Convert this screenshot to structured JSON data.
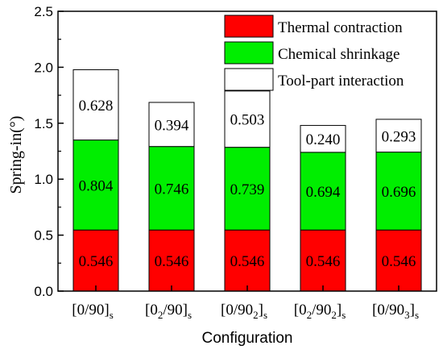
{
  "chart_data": {
    "type": "bar",
    "stacked": true,
    "categories": [
      {
        "base": "[0/90]",
        "sub": "s",
        "inner": ""
      },
      {
        "base": "[0",
        "inner": "2",
        "rest": "/90]",
        "sub": "s"
      },
      {
        "base": "[0/90",
        "inner": "2",
        "rest": "]",
        "sub": "s"
      },
      {
        "base": "[0",
        "inner": "2",
        "rest": "/90",
        "inner2": "2",
        "rest2": "]",
        "sub": "s"
      },
      {
        "base": "[0/90",
        "inner": "3",
        "rest": "]",
        "sub": "s"
      }
    ],
    "series": [
      {
        "name": "Thermal contraction",
        "color": "#ff0000",
        "values": [
          0.546,
          0.546,
          0.546,
          0.546,
          0.546
        ],
        "labels": [
          "0.546",
          "0.546",
          "0.546",
          "0.546",
          "0.546"
        ]
      },
      {
        "name": "Chemical shrinkage",
        "color": "#00ee00",
        "values": [
          0.804,
          0.746,
          0.739,
          0.694,
          0.696
        ],
        "labels": [
          "0.804",
          "0.746",
          "0.739",
          "0.694",
          "0.696"
        ]
      },
      {
        "name": "Tool-part interaction",
        "color": "#ffffff",
        "values": [
          0.628,
          0.394,
          0.503,
          0.24,
          0.293
        ],
        "labels": [
          "0.628",
          "0.394",
          "0.503",
          "0.240",
          "0.293"
        ]
      }
    ],
    "xlabel": "Configuration",
    "ylabel": "Spring-in(°)",
    "ylim": [
      0,
      2.5
    ],
    "yticks": [
      "0.0",
      "0.5",
      "1.0",
      "1.5",
      "2.0",
      "2.5"
    ],
    "legend_position": "top-right",
    "grid": false
  }
}
